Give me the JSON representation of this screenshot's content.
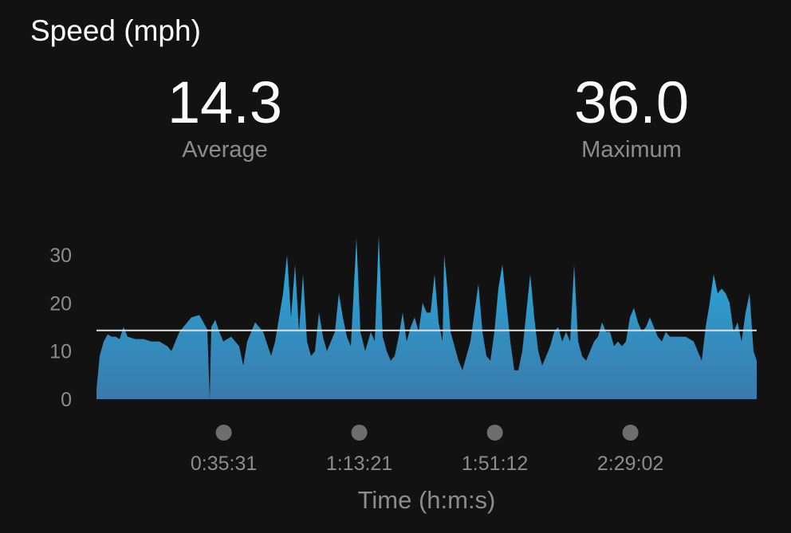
{
  "header": {
    "title": "Speed (mph)"
  },
  "stats": [
    {
      "value": "14.3",
      "label": "Average"
    },
    {
      "value": "36.0",
      "label": "Maximum"
    }
  ],
  "colors": {
    "background": "#121212",
    "area_top": "#27aee0",
    "area_bottom": "#3a7aab",
    "average_line": "#e0e0e0",
    "tick_dot": "#6e6e6e",
    "muted_text": "#8c8c8c"
  },
  "chart_data": {
    "type": "area",
    "xlabel": "Time (h:m:s)",
    "ylabel": "",
    "ylim": [
      0,
      30
    ],
    "xlim": [
      "0:00:00",
      "3:04:17"
    ],
    "yticks": [
      "0",
      "10",
      "20",
      "30"
    ],
    "xticks": [
      "0:35:31",
      "1:13:21",
      "1:51:12",
      "2:29:02"
    ],
    "grid": false,
    "average": 14.3,
    "series": [
      {
        "x": [
          "0:00:00",
          "0:00:53",
          "0:02:00",
          "0:03:07",
          "0:04:14",
          "0:05:20",
          "0:06:27",
          "0:07:34",
          "0:08:41",
          "0:10:54",
          "0:13:08",
          "0:15:21",
          "0:17:35",
          "0:19:49",
          "0:20:55",
          "0:22:02",
          "0:23:09",
          "0:24:16",
          "0:26:29",
          "0:28:43",
          "0:29:49",
          "0:30:56",
          "0:31:36",
          "0:32:03",
          "0:33:10",
          "0:34:17",
          "0:35:23",
          "0:37:37",
          "0:39:50",
          "0:40:57",
          "0:42:04",
          "0:44:17",
          "0:46:31",
          "0:48:45",
          "0:49:51",
          "0:52:05",
          "0:53:12",
          "0:54:18",
          "0:55:25",
          "0:56:32",
          "0:57:39",
          "0:58:45",
          "0:59:52",
          "1:00:59",
          "1:02:06",
          "1:03:13",
          "1:04:19",
          "1:05:26",
          "1:06:33",
          "1:07:40",
          "1:08:46",
          "1:09:53",
          "1:11:00",
          "1:12:33",
          "1:13:40",
          "1:15:00",
          "1:16:34",
          "1:17:41",
          "1:18:47",
          "1:19:54",
          "1:21:01",
          "1:22:08",
          "1:23:14",
          "1:24:21",
          "1:25:28",
          "1:26:35",
          "1:27:41",
          "1:28:48",
          "1:29:55",
          "1:31:02",
          "1:32:09",
          "1:33:15",
          "1:34:22",
          "1:35:29",
          "1:36:36",
          "1:37:02",
          "1:37:42",
          "1:38:49",
          "1:39:56",
          "1:41:03",
          "1:42:09",
          "1:43:16",
          "1:44:23",
          "1:45:30",
          "1:46:37",
          "1:47:43",
          "1:48:50",
          "1:49:57",
          "1:51:04",
          "1:52:10",
          "1:53:17",
          "1:54:24",
          "1:55:31",
          "1:56:37",
          "1:57:44",
          "1:58:51",
          "1:59:58",
          "2:01:05",
          "2:02:11",
          "2:03:18",
          "2:04:25",
          "2:05:32",
          "2:06:38",
          "2:07:45",
          "2:08:52",
          "2:09:59",
          "2:11:06",
          "2:12:12",
          "2:13:19",
          "2:14:26",
          "2:15:33",
          "2:16:39",
          "2:17:46",
          "2:18:53",
          "2:20:00",
          "2:21:06",
          "2:22:13",
          "2:23:20",
          "2:24:27",
          "2:25:34",
          "2:26:40",
          "2:27:47",
          "2:28:54",
          "2:30:01",
          "2:31:07",
          "2:32:14",
          "2:33:21",
          "2:34:28",
          "2:35:34",
          "2:36:41",
          "2:37:48",
          "2:38:55",
          "2:40:02",
          "2:42:15",
          "2:44:28",
          "2:46:42",
          "2:47:49",
          "2:48:56",
          "2:50:02",
          "2:51:09",
          "2:52:16",
          "2:53:23",
          "2:54:29",
          "2:55:36",
          "2:56:43",
          "2:57:50",
          "2:58:56",
          "3:00:03",
          "3:01:10",
          "3:02:17",
          "3:03:23",
          "3:04:17"
        ],
        "y": [
          2,
          9,
          12,
          13.5,
          13,
          13,
          12.5,
          15,
          13,
          12.5,
          12.5,
          12,
          12,
          11,
          10,
          12,
          14,
          15,
          17,
          17.5,
          16,
          14.5,
          0,
          15,
          16.5,
          14,
          12,
          13,
          11,
          7,
          12,
          16,
          14,
          9,
          12,
          22,
          30,
          17,
          28,
          14,
          26,
          12,
          9,
          10,
          18,
          13,
          10,
          12,
          14,
          22,
          17,
          13,
          11,
          33.5,
          14,
          10,
          14,
          12,
          34,
          13,
          10,
          8,
          9,
          13,
          18,
          12,
          15,
          17,
          14,
          20,
          18,
          18,
          26,
          16,
          12,
          30,
          25,
          14,
          11,
          8,
          6,
          9,
          12,
          18,
          24,
          14,
          9,
          8,
          14,
          23,
          28,
          20,
          12,
          6,
          6,
          10,
          18,
          26,
          17,
          10,
          7,
          9,
          11,
          14,
          15,
          12,
          14,
          12,
          28,
          12,
          9,
          8,
          10,
          12,
          13,
          16,
          14,
          14,
          11,
          12,
          11,
          12,
          17,
          19,
          16,
          14,
          15,
          17,
          15,
          13,
          12,
          14,
          13,
          13,
          13,
          12,
          10,
          8,
          15,
          20,
          26,
          22,
          23,
          22,
          20,
          14,
          16,
          12,
          18,
          22,
          10,
          8
        ]
      }
    ]
  }
}
